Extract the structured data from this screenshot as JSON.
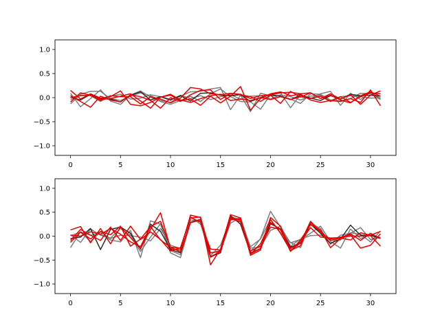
{
  "chart_data": [
    {
      "type": "line",
      "xlim": [
        -1.55,
        32.55
      ],
      "ylim": [
        -1.2,
        1.2
      ],
      "xticks": [
        "0",
        "5",
        "10",
        "15",
        "20",
        "25",
        "30"
      ],
      "yticks": [
        "−1.0",
        "−0.5",
        "0.0",
        "0.5",
        "1.0"
      ],
      "xtick_values": [
        0,
        5,
        10,
        15,
        20,
        25,
        30
      ],
      "ytick_values": [
        -1.0,
        -0.5,
        0.0,
        0.5,
        1.0
      ],
      "grid": false,
      "series": [
        {
          "color": "#777777",
          "values": [
            -0.13,
            0.07,
            0.13,
            0.13,
            -0.02,
            -0.06,
            0.03,
            0.1,
            0.04,
            -0.06,
            -0.1,
            0.03,
            0.12,
            0.13,
            0.18,
            0.21,
            -0.25,
            0.05,
            -0.29,
            0.09,
            0.04,
            0.04,
            -0.03,
            -0.12,
            0.08,
            0.07,
            -0.05,
            -0.07,
            -0.02,
            0.09,
            0.08,
            -0.04
          ]
        },
        {
          "color": "#777777",
          "values": [
            0.09,
            -0.19,
            -0.02,
            0.16,
            -0.07,
            -0.14,
            0.05,
            0.14,
            0.01,
            -0.08,
            -0.14,
            -0.06,
            0.03,
            -0.08,
            0.08,
            0.18,
            0.02,
            -0.08,
            -0.09,
            -0.24,
            0.06,
            0.1,
            -0.21,
            0.06,
            -0.02,
            0.08,
            0.13,
            -0.16,
            0.09,
            -0.04,
            0.11,
            -0.02
          ]
        },
        {
          "color": "#777777",
          "values": [
            -0.04,
            0.05,
            0.04,
            -0.08,
            0.03,
            0.07,
            -0.03,
            -0.01,
            0.06,
            0.02,
            -0.06,
            0.05,
            -0.02,
            0.04,
            -0.04,
            0.02,
            0.06,
            -0.03,
            0.03,
            0.04,
            -0.03,
            0.06,
            0.02,
            -0.05,
            0.03,
            0.05,
            -0.06,
            0.02,
            0.04,
            0.02,
            -0.01,
            0.0
          ]
        },
        {
          "color": "#222222",
          "values": [
            0.01,
            -0.05,
            0.07,
            -0.02,
            -0.03,
            -0.09,
            0.05,
            0.12,
            -0.05,
            0.02,
            -0.04,
            0.04,
            -0.07,
            0.09,
            0.1,
            0.05,
            0.04,
            0.06,
            -0.08,
            0.0,
            0.06,
            0.03,
            -0.04,
            0.05,
            -0.01,
            -0.06,
            0.04,
            -0.03,
            0.07,
            0.04,
            0.05,
            0.03
          ]
        },
        {
          "color": "#e60000",
          "values": [
            -0.09,
            0.1,
            0.05,
            -0.06,
            0.04,
            0.02,
            0.02,
            -0.13,
            0.02,
            -0.03,
            -0.11,
            -0.01,
            0.21,
            0.18,
            0.08,
            0.06,
            0.09,
            0.07,
            -0.02,
            0.04,
            0.06,
            0.1,
            0.11,
            0.08,
            0.1,
            -0.02,
            0.05,
            -0.05,
            -0.11,
            0.04,
            0.12,
            0.03
          ]
        },
        {
          "color": "#e60000",
          "values": [
            0.15,
            -0.03,
            0.08,
            -0.01,
            0.02,
            0.14,
            -0.14,
            -0.17,
            -0.1,
            0.01,
            0.05,
            -0.06,
            -0.03,
            -0.16,
            0.03,
            -0.11,
            0.03,
            0.23,
            -0.26,
            -0.02,
            0.08,
            0.12,
            0.04,
            0.07,
            -0.05,
            -0.1,
            -0.06,
            -0.08,
            -0.02,
            -0.1,
            0.16,
            -0.17
          ]
        },
        {
          "color": "#e60000",
          "values": [
            0.04,
            -0.08,
            -0.2,
            0.03,
            -0.05,
            -0.09,
            0.06,
            0.02,
            -0.06,
            -0.22,
            0.0,
            -0.08,
            0.06,
            0.15,
            0.16,
            -0.04,
            0.09,
            0.06,
            0.02,
            -0.08,
            0.05,
            -0.12,
            0.13,
            0.01,
            0.1,
            -0.02,
            0.08,
            -0.03,
            0.06,
            -0.14,
            0.05,
            0.14
          ]
        },
        {
          "color": "#e60000",
          "values": [
            0.0,
            0.04,
            0.05,
            -0.04,
            -0.02,
            0.03,
            0.08,
            -0.07,
            -0.22,
            0.01,
            0.07,
            -0.05,
            -0.1,
            -0.02,
            0.04,
            0.07,
            -0.06,
            -0.03,
            -0.06,
            0.0,
            -0.04,
            0.02,
            -0.04,
            0.02,
            -0.02,
            0.03,
            -0.08,
            0.02,
            -0.1,
            0.02,
            0.1,
            0.08
          ]
        }
      ]
    },
    {
      "type": "line",
      "xlim": [
        -1.55,
        32.55
      ],
      "ylim": [
        -1.2,
        1.2
      ],
      "xticks": [
        "0",
        "5",
        "10",
        "15",
        "20",
        "25",
        "30"
      ],
      "yticks": [
        "−1.0",
        "−0.5",
        "0.0",
        "0.5",
        "1.0"
      ],
      "xtick_values": [
        0,
        5,
        10,
        15,
        20,
        25,
        30
      ],
      "ytick_values": [
        -1.0,
        -0.5,
        0.0,
        0.5,
        1.0
      ],
      "grid": false,
      "series": [
        {
          "color": "#777777",
          "values": [
            -0.24,
            0.09,
            0.02,
            0.05,
            -0.08,
            -0.12,
            0.12,
            -0.45,
            0.32,
            0.25,
            -0.35,
            -0.45,
            0.29,
            0.33,
            -0.41,
            -0.19,
            0.37,
            0.37,
            -0.33,
            -0.05,
            0.52,
            0.19,
            -0.14,
            -0.07,
            0.06,
            0.21,
            -0.11,
            -0.25,
            0.15,
            -0.05,
            0.03,
            -0.03
          ]
        },
        {
          "color": "#777777",
          "values": [
            0.03,
            -0.13,
            0.15,
            0.02,
            -0.04,
            0.16,
            0.02,
            -0.32,
            -0.02,
            0.26,
            -0.3,
            -0.39,
            0.34,
            0.3,
            -0.45,
            -0.31,
            0.41,
            0.34,
            -0.22,
            -0.06,
            0.35,
            0.07,
            -0.13,
            -0.24,
            0.27,
            0.16,
            -0.17,
            0.02,
            0.06,
            0.18,
            -0.07,
            -0.02
          ]
        },
        {
          "color": "#777777",
          "values": [
            0.01,
            0.08,
            -0.11,
            0.09,
            -0.05,
            0.02,
            0.01,
            -0.02,
            -0.1,
            0.16,
            -0.19,
            -0.26,
            0.41,
            0.25,
            -0.35,
            -0.3,
            0.27,
            0.39,
            -0.25,
            -0.23,
            0.12,
            0.21,
            -0.21,
            -0.06,
            0.01,
            0.02,
            -0.08,
            -0.08,
            0.07,
            0.04,
            -0.12,
            0.11
          ]
        },
        {
          "color": "#222222",
          "values": [
            -0.05,
            -0.02,
            0.16,
            -0.28,
            0.14,
            0.19,
            0.06,
            -0.27,
            0.25,
            0.1,
            -0.28,
            -0.35,
            0.29,
            0.35,
            -0.43,
            -0.35,
            0.43,
            0.25,
            -0.35,
            -0.26,
            0.26,
            0.15,
            -0.23,
            -0.15,
            0.25,
            0.06,
            -0.15,
            -0.06,
            0.23,
            0.02,
            0.02,
            -0.05
          ]
        },
        {
          "color": "#e60000",
          "values": [
            0.13,
            0.2,
            -0.14,
            0.16,
            -0.16,
            0.19,
            -0.03,
            -0.26,
            0.14,
            0.49,
            -0.26,
            -0.29,
            0.44,
            0.39,
            -0.6,
            -0.27,
            0.45,
            0.38,
            -0.4,
            -0.29,
            0.35,
            0.06,
            -0.3,
            -0.14,
            0.31,
            0.1,
            -0.09,
            -0.04,
            -0.08,
            0.07,
            0.02,
            0.1
          ]
        },
        {
          "color": "#e60000",
          "values": [
            -0.09,
            0.14,
            0.02,
            -0.09,
            0.19,
            -0.09,
            0.21,
            -0.07,
            0.09,
            -0.07,
            -0.31,
            -0.24,
            0.39,
            0.29,
            -0.27,
            -0.29,
            0.39,
            0.33,
            -0.37,
            -0.26,
            0.39,
            0.21,
            -0.3,
            -0.2,
            0.3,
            0.07,
            -0.06,
            -0.02,
            0.0,
            0.0,
            0.01,
            -0.21
          ]
        },
        {
          "color": "#e60000",
          "values": [
            -0.13,
            0.09,
            -0.06,
            0.1,
            0.03,
            0.21,
            -0.21,
            -0.06,
            0.2,
            -0.08,
            -0.23,
            -0.33,
            0.28,
            0.34,
            -0.43,
            -0.32,
            0.34,
            0.36,
            -0.31,
            -0.21,
            0.19,
            0.14,
            -0.32,
            -0.08,
            0.24,
            0.13,
            -0.24,
            -0.05,
            0.03,
            -0.25,
            -0.19,
            0.05
          ]
        },
        {
          "color": "#e60000",
          "values": [
            0.02,
            0.0,
            0.09,
            0.04,
            0.16,
            0.04,
            -0.12,
            -0.22,
            0.2,
            0.31,
            -0.23,
            -0.25,
            0.38,
            0.4,
            -0.35,
            -0.32,
            0.37,
            0.3,
            -0.38,
            -0.16,
            0.29,
            0.13,
            -0.26,
            -0.12,
            0.18,
            -0.02,
            -0.04,
            -0.03,
            0.05,
            -0.09,
            0.06,
            -0.05
          ]
        }
      ]
    }
  ]
}
